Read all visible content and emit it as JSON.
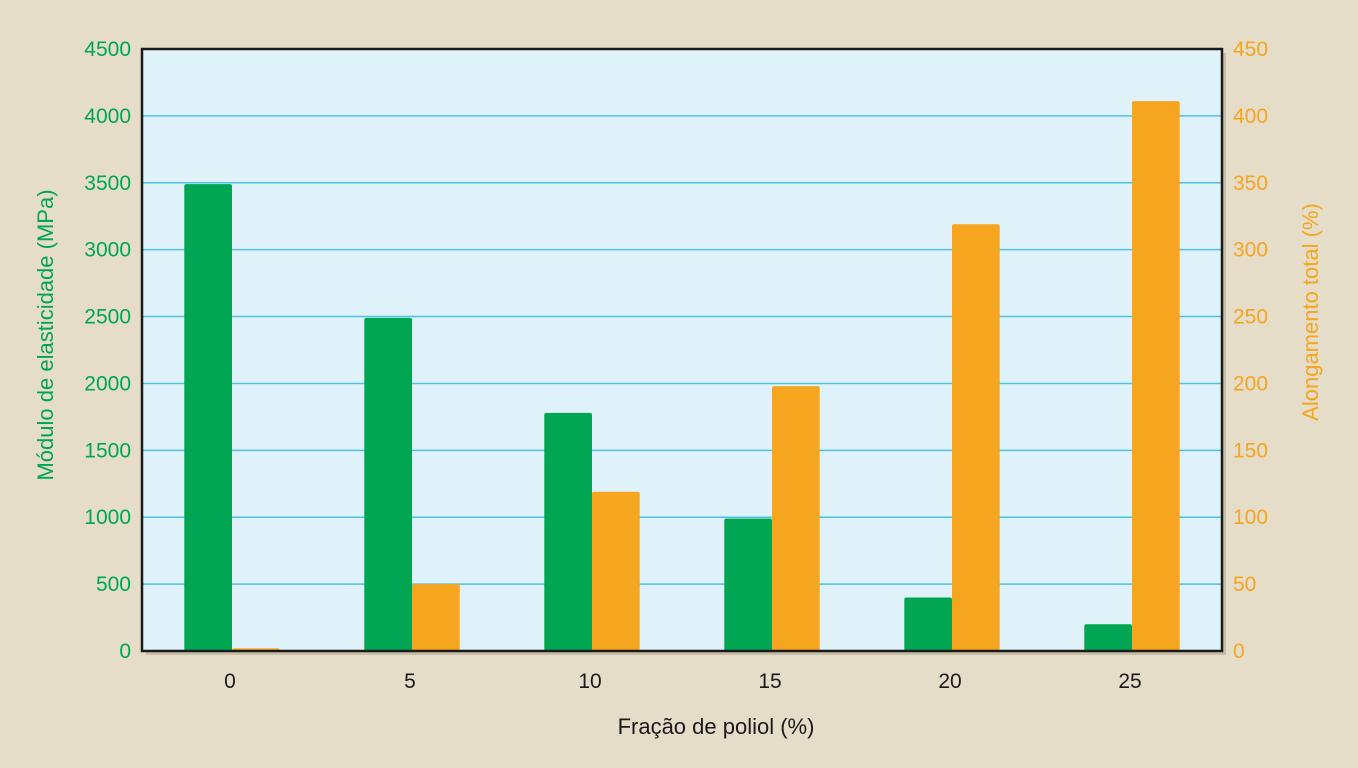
{
  "chart_data": {
    "type": "bar",
    "xlabel": "Fração de poliol (%)",
    "categories": [
      "0",
      "5",
      "10",
      "15",
      "20",
      "25"
    ],
    "series": [
      {
        "values": [
          3490,
          2490,
          1780,
          990,
          400,
          200
        ],
        "axis": "left",
        "color": "#00a651"
      },
      {
        "values": [
          2,
          50,
          119,
          198,
          319,
          411
        ],
        "axis": "right",
        "color": "#f6a51e"
      }
    ],
    "y_left": {
      "label": "Módulo de elasticidade (MPa)",
      "ylim": [
        0,
        4500
      ],
      "ticks": [
        "0",
        "500",
        "1000",
        "1500",
        "2000",
        "2500",
        "3000",
        "3500",
        "4000",
        "4500"
      ],
      "color": "#00a651"
    },
    "y_right": {
      "label": "Alongamento total (%)",
      "ylim": [
        0,
        450
      ],
      "ticks": [
        "0",
        "50",
        "100",
        "150",
        "200",
        "250",
        "300",
        "350",
        "400",
        "450"
      ],
      "color": "#f6a51e"
    },
    "grid": true,
    "plot_background": "#e0f2f9",
    "gridline_color": "#4cc1e3",
    "legend": "none"
  }
}
